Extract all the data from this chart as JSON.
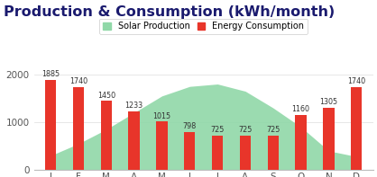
{
  "title": "Production & Consumption (kWh/month)",
  "months": [
    "J",
    "F",
    "M",
    "A",
    "M",
    "J",
    "J",
    "A",
    "S",
    "O",
    "N",
    "D"
  ],
  "consumption": [
    1885,
    1740,
    1450,
    1233,
    1015,
    798,
    725,
    725,
    725,
    1160,
    1305,
    1740
  ],
  "solar_production": [
    300,
    550,
    850,
    1200,
    1550,
    1750,
    1800,
    1650,
    1300,
    900,
    400,
    280
  ],
  "bar_color": "#e8352a",
  "solar_color": "#90d8a8",
  "ylim": [
    0,
    2300
  ],
  "yticks": [
    0,
    1000,
    2000
  ],
  "background_color": "#ffffff",
  "title_fontsize": 11.5,
  "title_color": "#1a1a6e",
  "legend_solar_label": "Solar Production",
  "legend_consumption_label": "Energy Consumption",
  "annotation_fontsize": 5.8,
  "tick_fontsize": 7.5
}
